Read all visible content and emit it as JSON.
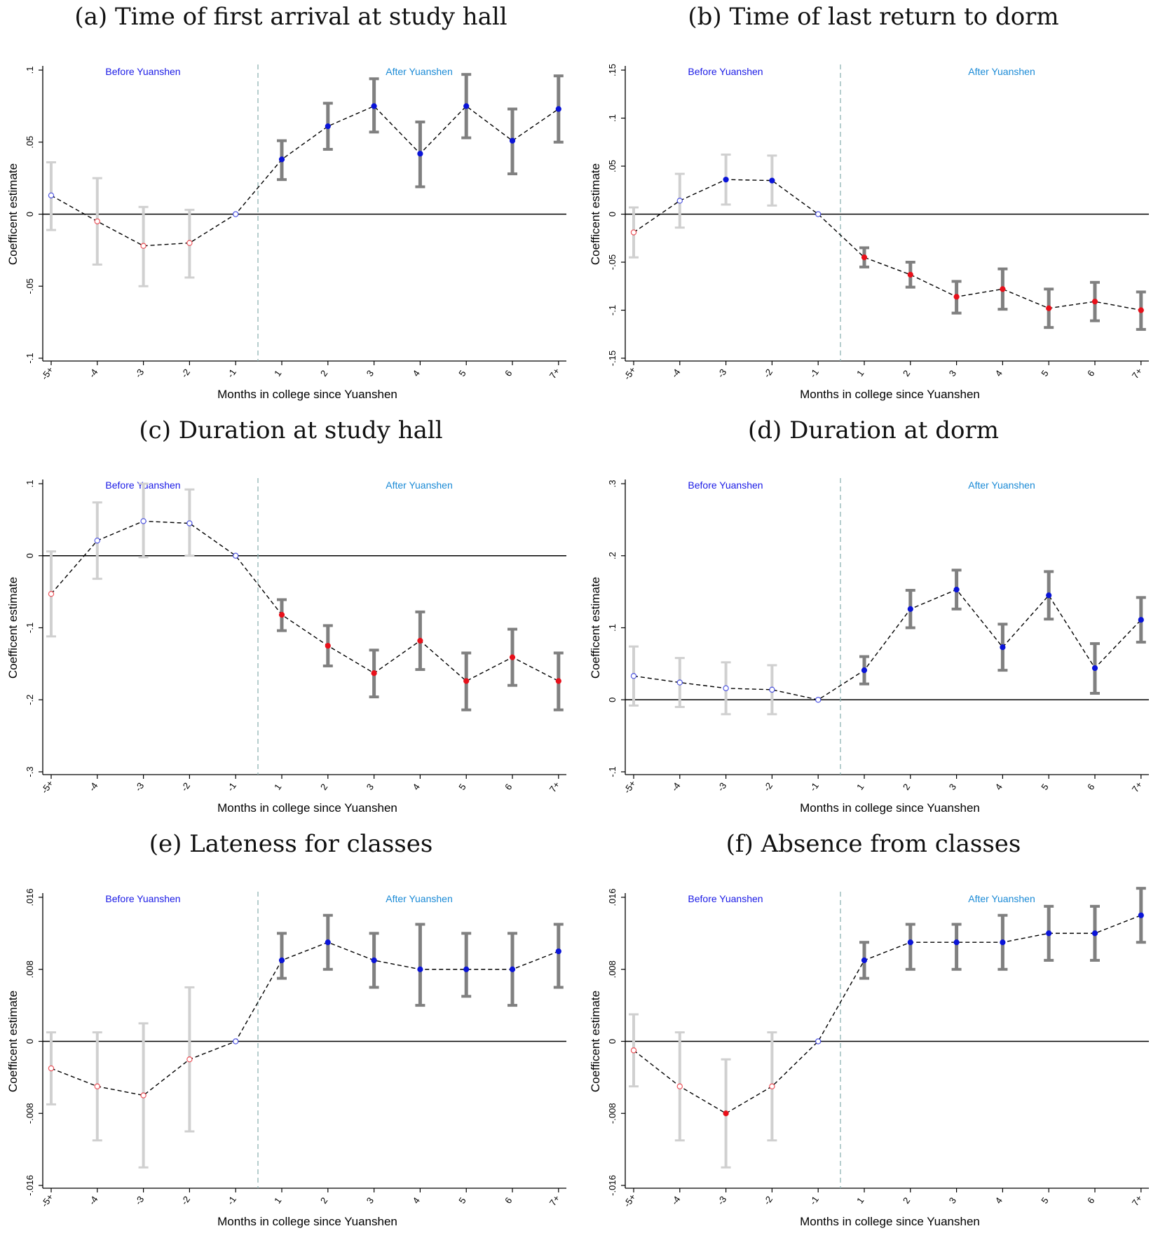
{
  "figure": {
    "colors": {
      "pre_ci": "#d0d0d0",
      "post_ci": "#808080",
      "positive": "#0a14d8",
      "negative": "#e8101a",
      "before_label": "#1a1ae6",
      "after_label": "#1a8ad6",
      "divider": "#8fb4b4"
    }
  },
  "chart_data": [
    {
      "type": "scatter",
      "title": "(a) Time of first arrival at study hall",
      "xlabel": "Months in college since Yuanshen",
      "ylabel": "Coefficent estimate",
      "before_label": "Before Yuanshen",
      "after_label": "After Yuanshen",
      "categories": [
        "-5+",
        "-4",
        "-3",
        "-2",
        "-1",
        "1",
        "2",
        "3",
        "4",
        "5",
        "6",
        "7+"
      ],
      "ylim": [
        -0.1,
        0.1
      ],
      "yticks": [
        -0.1,
        -0.05,
        0,
        0.05,
        0.1
      ],
      "ytick_labels": [
        "-.1",
        "-.05",
        "0",
        ".05",
        ".1"
      ],
      "estimates": [
        0.013,
        -0.005,
        -0.022,
        -0.02,
        0,
        0.038,
        0.061,
        0.075,
        0.042,
        0.075,
        0.051,
        0.073
      ],
      "ci_low": [
        -0.011,
        -0.035,
        -0.05,
        -0.044,
        0,
        0.024,
        0.045,
        0.057,
        0.019,
        0.053,
        0.028,
        0.05
      ],
      "ci_high": [
        0.036,
        0.025,
        0.005,
        0.003,
        0,
        0.051,
        0.077,
        0.094,
        0.064,
        0.097,
        0.073,
        0.096
      ]
    },
    {
      "type": "scatter",
      "title": "(b) Time of last return to dorm",
      "xlabel": "Months in college since Yuanshen",
      "ylabel": "Coefficent estimate",
      "before_label": "Before Yuanshen",
      "after_label": "After Yuanshen",
      "categories": [
        "-5+",
        "-4",
        "-3",
        "-2",
        "-1",
        "1",
        "2",
        "3",
        "4",
        "5",
        "6",
        "7+"
      ],
      "ylim": [
        -0.15,
        0.15
      ],
      "yticks": [
        -0.15,
        -0.1,
        -0.05,
        0,
        0.05,
        0.1,
        0.15
      ],
      "ytick_labels": [
        "-.15",
        "-.1",
        "-.05",
        "0",
        ".05",
        ".1",
        ".15"
      ],
      "estimates": [
        -0.019,
        0.014,
        0.036,
        0.035,
        0,
        -0.045,
        -0.063,
        -0.086,
        -0.078,
        -0.098,
        -0.091,
        -0.1
      ],
      "ci_low": [
        -0.045,
        -0.014,
        0.01,
        0.009,
        0,
        -0.055,
        -0.076,
        -0.103,
        -0.099,
        -0.118,
        -0.111,
        -0.12
      ],
      "ci_high": [
        0.007,
        0.042,
        0.062,
        0.061,
        0,
        -0.035,
        -0.05,
        -0.07,
        -0.057,
        -0.078,
        -0.071,
        -0.081
      ]
    },
    {
      "type": "scatter",
      "title": "(c) Duration at study hall",
      "xlabel": "Months in college since Yuanshen",
      "ylabel": "Coefficent estimate",
      "before_label": "Before Yuanshen",
      "after_label": "After Yuanshen",
      "categories": [
        "-5+",
        "-4",
        "-3",
        "-2",
        "-1",
        "1",
        "2",
        "3",
        "4",
        "5",
        "6",
        "7+"
      ],
      "ylim": [
        -0.3,
        0.1
      ],
      "yticks": [
        -0.3,
        -0.2,
        -0.1,
        0,
        0.1
      ],
      "ytick_labels": [
        "-.3",
        "-.2",
        "-.1",
        "0",
        ".1"
      ],
      "estimates": [
        -0.053,
        0.021,
        0.048,
        0.045,
        0,
        -0.082,
        -0.125,
        -0.163,
        -0.118,
        -0.174,
        -0.141,
        -0.174
      ],
      "ci_low": [
        -0.112,
        -0.032,
        -0.002,
        0,
        0,
        -0.104,
        -0.153,
        -0.196,
        -0.158,
        -0.214,
        -0.18,
        -0.214
      ],
      "ci_high": [
        0.006,
        0.074,
        0.1,
        0.092,
        0,
        -0.061,
        -0.097,
        -0.131,
        -0.078,
        -0.135,
        -0.102,
        -0.135
      ]
    },
    {
      "type": "scatter",
      "title": "(d) Duration at dorm",
      "xlabel": "Months in college since Yuanshen",
      "ylabel": "Coefficent estimate",
      "before_label": "Before Yuanshen",
      "after_label": "After Yuanshen",
      "categories": [
        "-5+",
        "-4",
        "-3",
        "-2",
        "-1",
        "1",
        "2",
        "3",
        "4",
        "5",
        "6",
        "7+"
      ],
      "ylim": [
        -0.1,
        0.3
      ],
      "yticks": [
        -0.1,
        0,
        0.1,
        0.2,
        0.3
      ],
      "ytick_labels": [
        "-.1",
        "0",
        ".1",
        ".2",
        ".3"
      ],
      "estimates": [
        0.033,
        0.024,
        0.016,
        0.014,
        0,
        0.041,
        0.126,
        0.153,
        0.073,
        0.145,
        0.044,
        0.111
      ],
      "ci_low": [
        -0.008,
        -0.01,
        -0.02,
        -0.02,
        0,
        0.022,
        0.1,
        0.126,
        0.041,
        0.112,
        0.009,
        0.08
      ],
      "ci_high": [
        0.074,
        0.058,
        0.052,
        0.048,
        0,
        0.06,
        0.152,
        0.18,
        0.105,
        0.178,
        0.078,
        0.142
      ]
    },
    {
      "type": "scatter",
      "title": "(e) Lateness for classes",
      "xlabel": "Months in college since Yuanshen",
      "ylabel": "Coefficent estimate",
      "before_label": "Before Yuanshen",
      "after_label": "After Yuanshen",
      "categories": [
        "-5+",
        "-4",
        "-3",
        "-2",
        "-1",
        "1",
        "2",
        "3",
        "4",
        "5",
        "6",
        "7+"
      ],
      "ylim": [
        -0.016,
        0.016
      ],
      "yticks": [
        -0.016,
        -0.008,
        0,
        0.008,
        0.016
      ],
      "ytick_labels": [
        "-.016",
        "-.008",
        "0",
        ".008",
        ".016"
      ],
      "estimates": [
        -0.003,
        -0.005,
        -0.006,
        -0.002,
        0,
        0.009,
        0.011,
        0.009,
        0.008,
        0.008,
        0.008,
        0.01
      ],
      "ci_low": [
        -0.007,
        -0.011,
        -0.014,
        -0.01,
        0,
        0.007,
        0.008,
        0.006,
        0.004,
        0.005,
        0.004,
        0.006
      ],
      "ci_high": [
        0.001,
        0.001,
        0.002,
        0.006,
        0,
        0.012,
        0.014,
        0.012,
        0.013,
        0.012,
        0.012,
        0.013
      ]
    },
    {
      "type": "scatter",
      "title": "(f) Absence from classes",
      "xlabel": "Months in college since Yuanshen",
      "ylabel": "Coefficent estimate",
      "before_label": "Before Yuanshen",
      "after_label": "After Yuanshen",
      "categories": [
        "-5+",
        "-4",
        "-3",
        "-2",
        "-1",
        "1",
        "2",
        "3",
        "4",
        "5",
        "6",
        "7+"
      ],
      "ylim": [
        -0.016,
        0.016
      ],
      "yticks": [
        -0.016,
        -0.008,
        0,
        0.008,
        0.016
      ],
      "ytick_labels": [
        "-.016",
        "-.008",
        "0",
        ".008",
        ".016"
      ],
      "estimates": [
        -0.001,
        -0.005,
        -0.008,
        -0.005,
        0,
        0.009,
        0.011,
        0.011,
        0.011,
        0.012,
        0.012,
        0.014
      ],
      "ci_low": [
        -0.005,
        -0.011,
        -0.014,
        -0.011,
        0,
        0.007,
        0.008,
        0.008,
        0.008,
        0.009,
        0.009,
        0.011
      ],
      "ci_high": [
        0.003,
        0.001,
        -0.002,
        0.001,
        0,
        0.011,
        0.013,
        0.013,
        0.014,
        0.015,
        0.015,
        0.017
      ]
    }
  ]
}
